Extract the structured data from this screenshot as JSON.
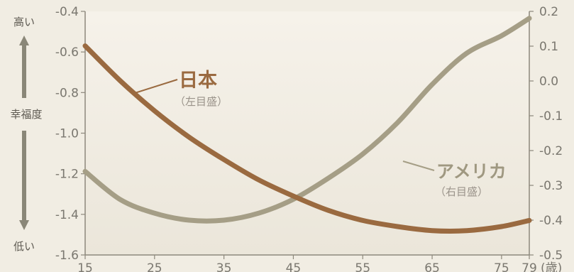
{
  "chart_data": {
    "type": "line",
    "x": [
      15,
      20,
      25,
      30,
      35,
      40,
      45,
      50,
      55,
      60,
      65,
      70,
      75,
      79
    ],
    "x_ticks": [
      "15",
      "25",
      "35",
      "45",
      "55",
      "65",
      "75",
      "79"
    ],
    "x_tick_values": [
      15,
      25,
      35,
      45,
      55,
      65,
      75,
      79
    ],
    "x_unit": "(歳)",
    "xlim": [
      15,
      79
    ],
    "y_left": {
      "label": "幸福度",
      "high": "高い",
      "low": "低い",
      "ylim": [
        -1.6,
        -0.4
      ],
      "ticks": [
        "-0.4",
        "-0.6",
        "-0.8",
        "-1.0",
        "-1.2",
        "-1.4",
        "-1.6"
      ],
      "tick_values": [
        -0.4,
        -0.6,
        -0.8,
        -1.0,
        -1.2,
        -1.4,
        -1.6
      ]
    },
    "y_right": {
      "ylim": [
        -0.5,
        0.2
      ],
      "ticks": [
        "0.2",
        "0.1",
        "0.0",
        "-0.1",
        "-0.2",
        "-0.3",
        "-0.4",
        "-0.5"
      ],
      "tick_values": [
        0.2,
        0.1,
        0.0,
        -0.1,
        -0.2,
        -0.3,
        -0.4,
        -0.5
      ]
    },
    "series": [
      {
        "name": "日本",
        "note": "（左目盛）",
        "axis": "left",
        "color": "#9a6a40",
        "values": [
          -0.57,
          -0.74,
          -0.89,
          -1.02,
          -1.13,
          -1.23,
          -1.31,
          -1.38,
          -1.43,
          -1.46,
          -1.48,
          -1.48,
          -1.46,
          -1.43
        ]
      },
      {
        "name": "アメリカ",
        "note": "（右目盛）",
        "axis": "right",
        "color": "#a59e86",
        "values": [
          -0.26,
          -0.34,
          -0.38,
          -0.4,
          -0.4,
          -0.38,
          -0.34,
          -0.28,
          -0.21,
          -0.12,
          -0.01,
          0.08,
          0.13,
          0.18
        ]
      }
    ],
    "grid": false
  }
}
